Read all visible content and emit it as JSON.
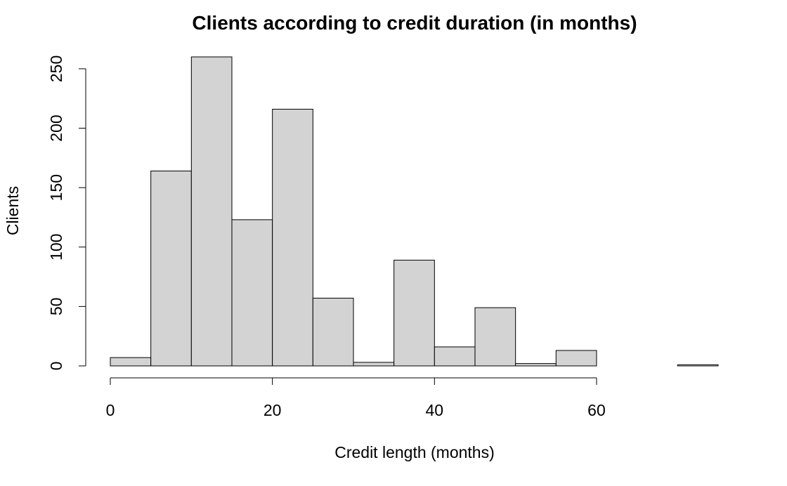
{
  "chart_data": {
    "type": "bar",
    "title": "Clients according to credit duration (in months)",
    "xlabel": "Credit length (months)",
    "ylabel": "Clients",
    "bins": [
      {
        "start": 0,
        "end": 5,
        "count": 7
      },
      {
        "start": 5,
        "end": 10,
        "count": 164
      },
      {
        "start": 10,
        "end": 15,
        "count": 260
      },
      {
        "start": 15,
        "end": 20,
        "count": 123
      },
      {
        "start": 20,
        "end": 25,
        "count": 216
      },
      {
        "start": 25,
        "end": 30,
        "count": 57
      },
      {
        "start": 30,
        "end": 35,
        "count": 3
      },
      {
        "start": 35,
        "end": 40,
        "count": 89
      },
      {
        "start": 40,
        "end": 45,
        "count": 16
      },
      {
        "start": 45,
        "end": 50,
        "count": 49
      },
      {
        "start": 50,
        "end": 55,
        "count": 2
      },
      {
        "start": 55,
        "end": 60,
        "count": 13
      },
      {
        "start": 60,
        "end": 65,
        "count": 0
      },
      {
        "start": 65,
        "end": 70,
        "count": 0
      },
      {
        "start": 70,
        "end": 75,
        "count": 1
      }
    ],
    "xlim": [
      0,
      75
    ],
    "ylim": [
      0,
      260
    ],
    "x_ticks": [
      "0",
      "20",
      "40",
      "60"
    ],
    "y_ticks": [
      "0",
      "50",
      "100",
      "150",
      "200",
      "250"
    ],
    "grid": false,
    "colors": {
      "bar_fill": "#d3d3d3",
      "bar_stroke": "#000000",
      "axis": "#000000"
    }
  }
}
